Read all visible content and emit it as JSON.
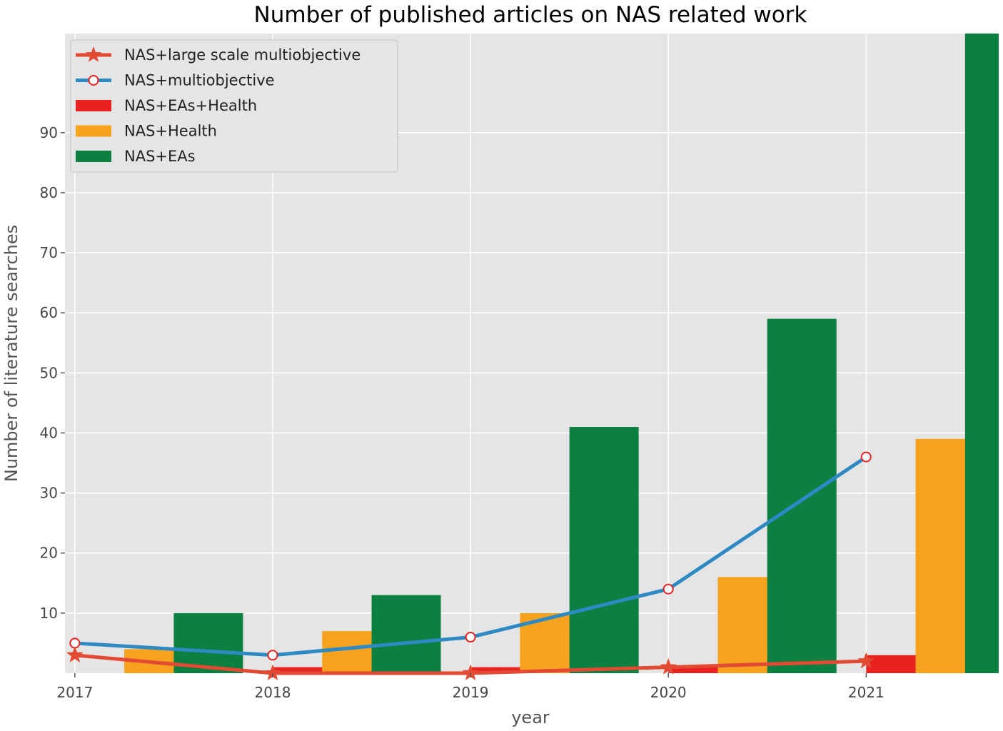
{
  "chart_data": {
    "type": "bar",
    "title": "Number of published articles on NAS related work",
    "xlabel": "year",
    "ylabel": "Number of literature searches",
    "categories": [
      "2017",
      "2018",
      "2019",
      "2020",
      "2021"
    ],
    "x": [
      2017,
      2018,
      2019,
      2020,
      2021
    ],
    "xlim": [
      2016.95,
      2021.67
    ],
    "ylim": [
      0,
      106.5
    ],
    "yticks": [
      10,
      20,
      30,
      40,
      50,
      60,
      70,
      80,
      90
    ],
    "grid": true,
    "legend_position": "top-left",
    "bar_series": [
      {
        "name": "NAS+EAs+Health",
        "color": "#e8221f",
        "offset": 0.0,
        "values": [
          0,
          1,
          1,
          1,
          3
        ]
      },
      {
        "name": "NAS+Health",
        "color": "#f7a21d",
        "offset": 0.25,
        "values": [
          4,
          7,
          10,
          16,
          39
        ]
      },
      {
        "name": "NAS+EAs",
        "color": "#0c8040",
        "offset": 0.5,
        "values": [
          10,
          13,
          41,
          59,
          108
        ]
      }
    ],
    "bar_width": 0.35,
    "line_series": [
      {
        "name": "NAS+large scale multiobjective",
        "color": "#e24a33",
        "marker": "star",
        "values": [
          3,
          0,
          0,
          1,
          2
        ]
      },
      {
        "name": "NAS+multiobjective",
        "color": "#2f8ac4",
        "marker": "circle",
        "values": [
          5,
          3,
          6,
          14,
          36
        ]
      }
    ],
    "legend": [
      {
        "label": "NAS+large scale multiobjective",
        "kind": "line-star",
        "color": "#e24a33"
      },
      {
        "label": "NAS+multiobjective",
        "kind": "line-circle",
        "color": "#2f8ac4"
      },
      {
        "label": "NAS+EAs+Health",
        "kind": "patch",
        "color": "#e8221f"
      },
      {
        "label": "NAS+Health",
        "kind": "patch",
        "color": "#f7a21d"
      },
      {
        "label": "NAS+EAs",
        "kind": "patch",
        "color": "#0c8040"
      }
    ]
  }
}
